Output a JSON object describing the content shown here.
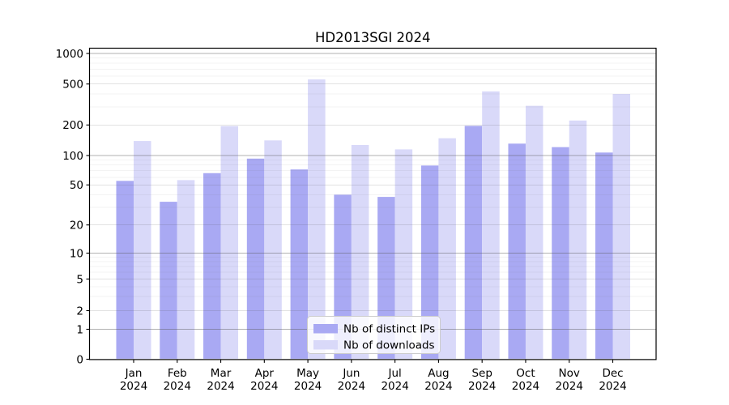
{
  "chart_data": {
    "type": "bar",
    "title": "HD2013SGI 2024",
    "year": "2024",
    "categories": [
      "Jan",
      "Feb",
      "Mar",
      "Apr",
      "May",
      "Jun",
      "Jul",
      "Aug",
      "Sep",
      "Oct",
      "Nov",
      "Dec"
    ],
    "series": [
      {
        "name": "Nb of distinct IPs",
        "color": "#a9a9f3",
        "values": [
          55,
          34,
          66,
          93,
          72,
          40,
          38,
          79,
          196,
          131,
          121,
          107
        ]
      },
      {
        "name": "Nb of downloads",
        "color": "#d9d9f9",
        "values": [
          139,
          56,
          195,
          141,
          555,
          127,
          115,
          148,
          424,
          307,
          221,
          400
        ]
      }
    ],
    "y_axis": {
      "scale": "symlog",
      "tick_values": [
        0,
        1,
        2,
        5,
        10,
        20,
        50,
        100,
        200,
        500,
        1000
      ],
      "tick_labels": [
        "0",
        "1",
        "2",
        "5",
        "10",
        "20",
        "50",
        "100",
        "200",
        "500",
        "1000"
      ],
      "ylim": [
        0,
        1000
      ]
    },
    "grid": "horizontal major and minor gridlines",
    "legend_position": "bottom-center"
  },
  "colors": {
    "bar_ips": "#a9a9f3",
    "bar_downloads": "#d9d9f9",
    "grid_major": "rgba(85,85,85,0.45)",
    "grid_mid": "rgba(85,85,85,0.17)",
    "grid_minor": "rgba(85,85,85,0.07)",
    "frame": "#000000",
    "legend_bg": "rgba(255,255,255,0.8)",
    "legend_border": "#cccccc"
  }
}
